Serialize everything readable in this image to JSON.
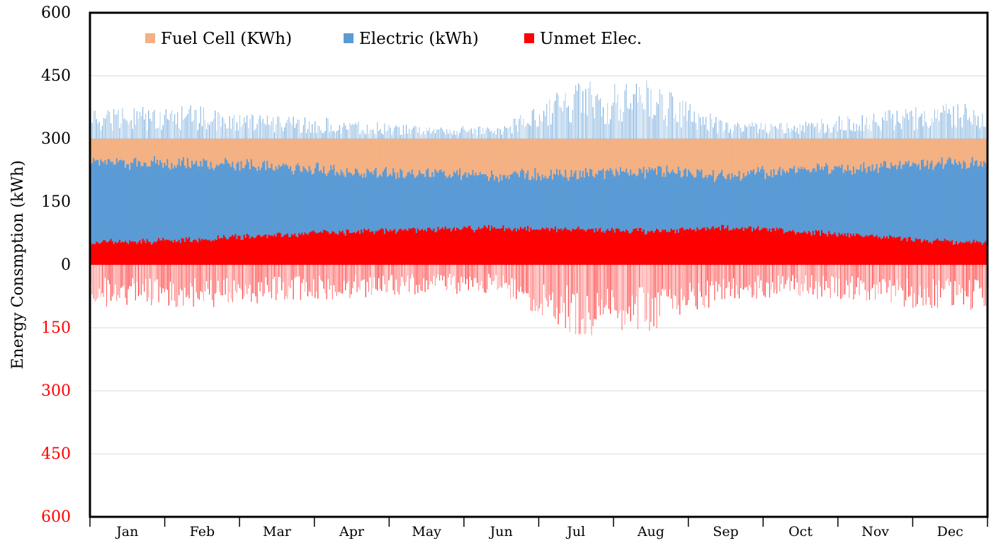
{
  "chart_data": {
    "type": "area",
    "title": "",
    "ylabel": "Energy Consmption (kWh)",
    "xlabel": "",
    "ylim": [
      -600,
      600
    ],
    "yticks": [
      {
        "value": 600,
        "label": "600",
        "color": "#000000"
      },
      {
        "value": 450,
        "label": "450",
        "color": "#000000"
      },
      {
        "value": 300,
        "label": "300",
        "color": "#000000"
      },
      {
        "value": 150,
        "label": "150",
        "color": "#000000"
      },
      {
        "value": 0,
        "label": "0",
        "color": "#000000"
      },
      {
        "value": -150,
        "label": "150",
        "color": "#ff0000"
      },
      {
        "value": -300,
        "label": "300",
        "color": "#ff0000"
      },
      {
        "value": -450,
        "label": "450",
        "color": "#ff0000"
      },
      {
        "value": -600,
        "label": "600",
        "color": "#ff0000"
      }
    ],
    "categories": [
      "Jan",
      "Feb",
      "Mar",
      "Apr",
      "May",
      "Jun",
      "Jul",
      "Aug",
      "Sep",
      "Oct",
      "Nov",
      "Dec"
    ],
    "grid": true,
    "legend_position": "top-left",
    "series": [
      {
        "name": "Fuel Cell (KWh)",
        "color": "#f4b183",
        "kind": "band",
        "lower": [
          250,
          248,
          240,
          228,
          222,
          220,
          222,
          228,
          220,
          232,
          240,
          248
        ],
        "upper": [
          300,
          300,
          300,
          300,
          300,
          300,
          300,
          300,
          300,
          300,
          300,
          300
        ]
      },
      {
        "name": "Electric (kWh)",
        "color": "#5b9bd5",
        "kind": "band",
        "lower": [
          55,
          62,
          72,
          80,
          85,
          88,
          85,
          80,
          90,
          80,
          68,
          55
        ],
        "upper": [
          250,
          248,
          240,
          228,
          222,
          220,
          222,
          228,
          220,
          232,
          240,
          248
        ],
        "peaks": [
          375,
          380,
          360,
          345,
          330,
          330,
          440,
          440,
          340,
          340,
          370,
          385
        ]
      },
      {
        "name": "Unmet Elec.",
        "color": "#ff0000",
        "kind": "band",
        "lower": [
          0,
          0,
          0,
          0,
          0,
          0,
          0,
          0,
          0,
          0,
          0,
          0
        ],
        "upper": [
          55,
          62,
          72,
          80,
          85,
          88,
          85,
          80,
          90,
          80,
          68,
          55
        ],
        "negative_min": [
          -100,
          -105,
          -90,
          -80,
          -70,
          -70,
          -170,
          -160,
          -85,
          -80,
          -95,
          -110
        ]
      }
    ]
  }
}
